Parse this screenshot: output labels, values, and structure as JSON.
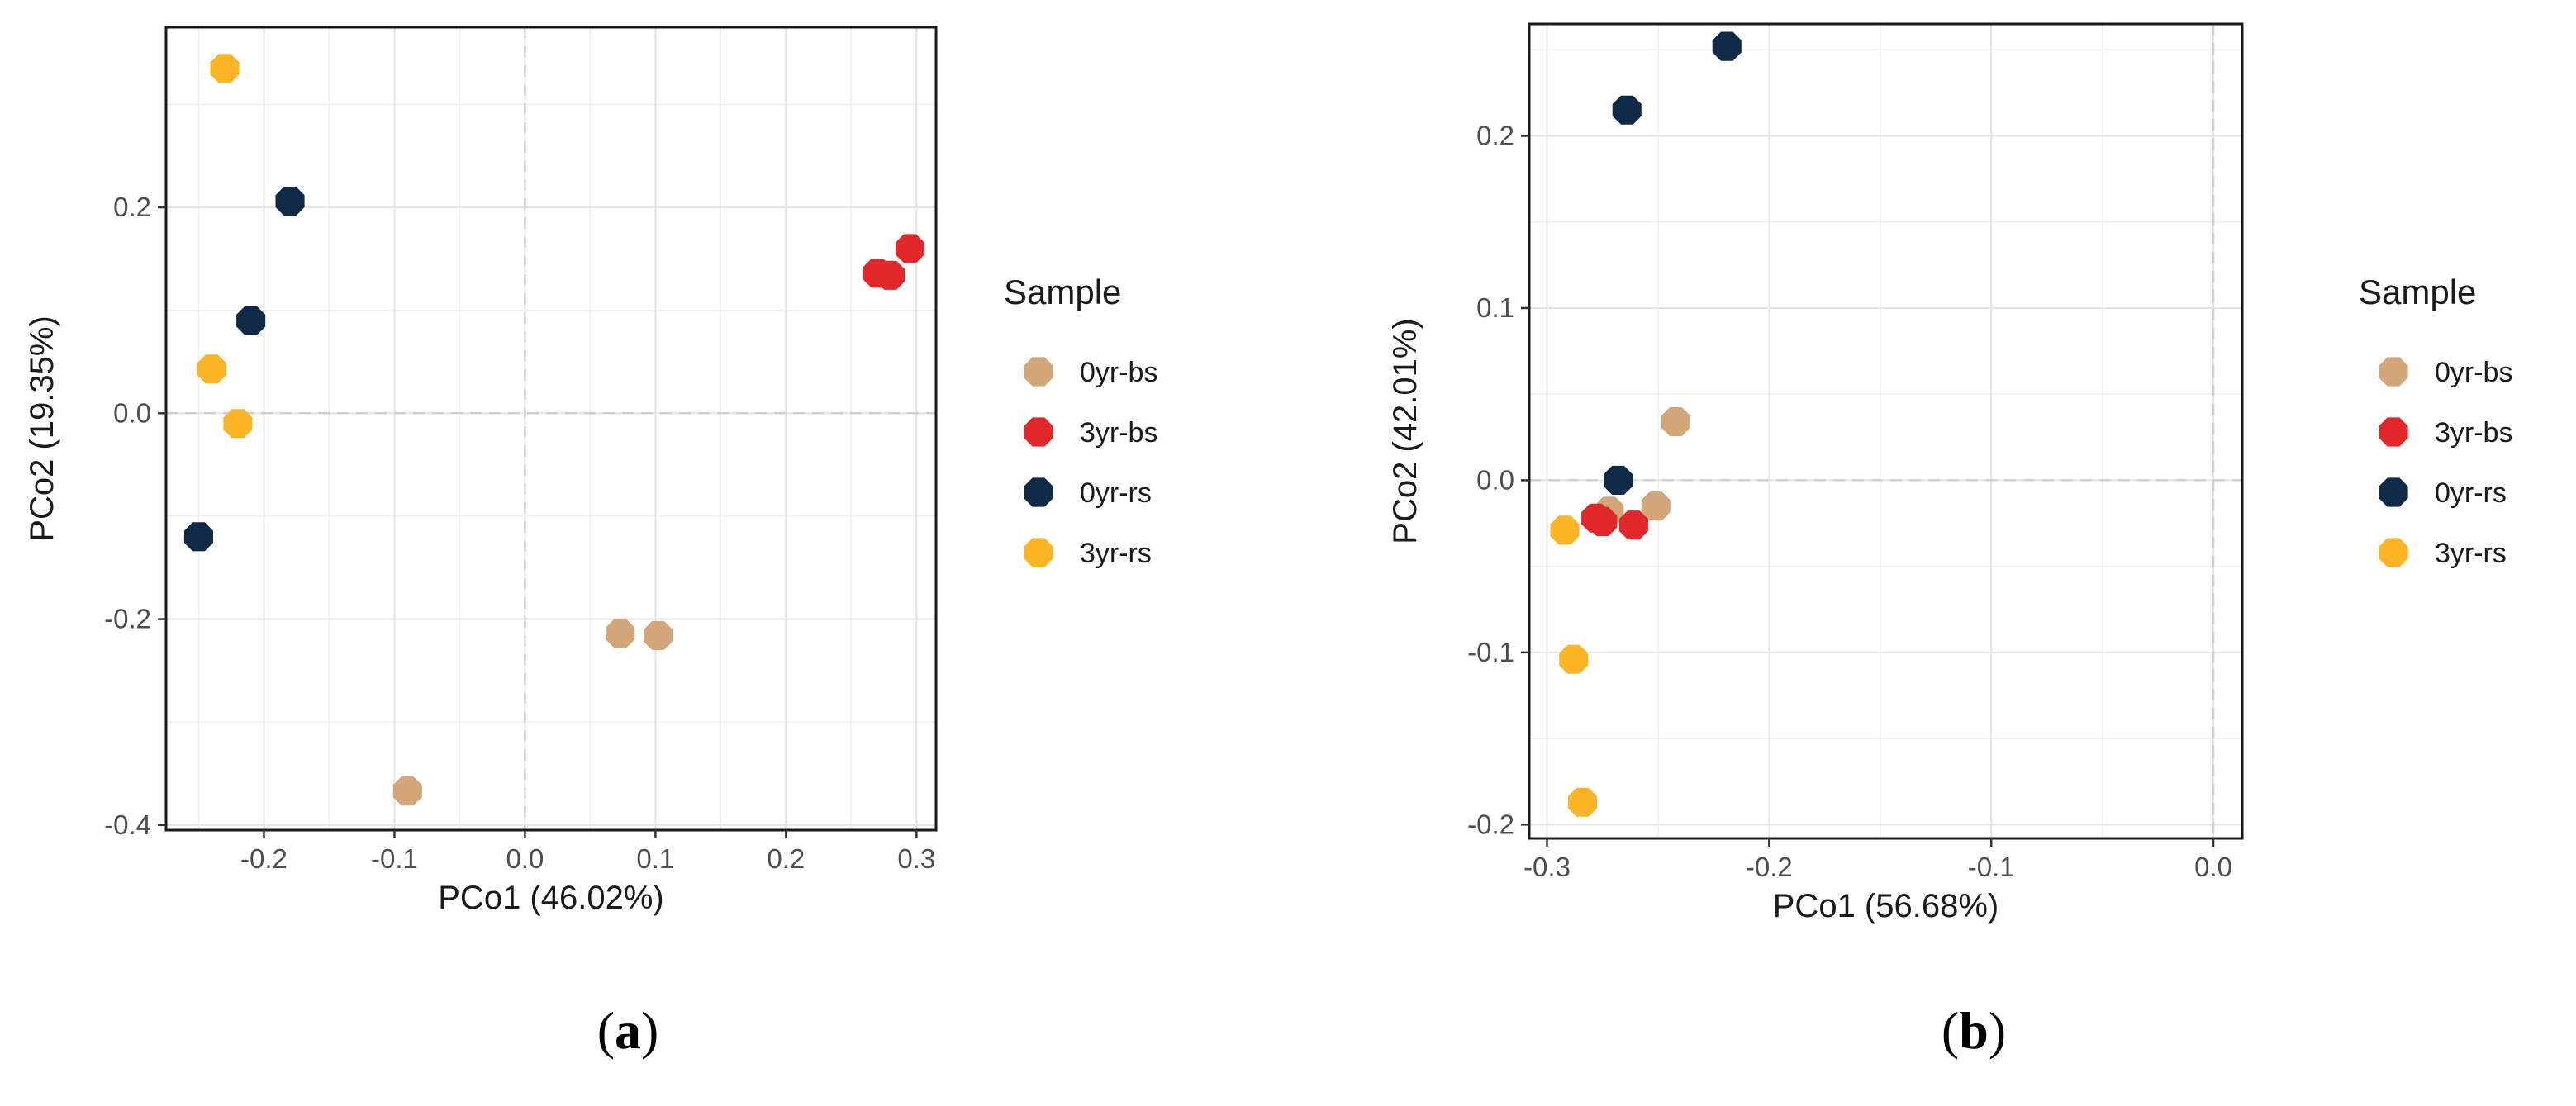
{
  "series_colors": {
    "0yr-bs": "#D2A679",
    "3yr-bs": "#E0282B",
    "0yr-rs": "#0E2A47",
    "3yr-rs": "#FBB524"
  },
  "panels": [
    {
      "caption_open": "(",
      "caption_letter": "a",
      "caption_close": ")",
      "legend_title": "Sample",
      "legend_items": [
        "0yr-bs",
        "3yr-bs",
        "0yr-rs",
        "3yr-rs"
      ],
      "x_tick_labels": [
        "-0.2",
        "-0.1",
        "0.0",
        "0.1",
        "0.2",
        "0.3"
      ],
      "y_tick_labels": [
        "0.2",
        "0.0",
        "-0.2",
        "-0.4"
      ]
    },
    {
      "caption_open": "(",
      "caption_letter": "b",
      "caption_close": ")",
      "legend_title": "Sample",
      "legend_items": [
        "0yr-bs",
        "3yr-bs",
        "0yr-rs",
        "3yr-rs"
      ],
      "x_tick_labels": [
        "-0.3",
        "-0.2",
        "-0.1",
        "0.0"
      ],
      "y_tick_labels": [
        "0.2",
        "0.1",
        "0.0",
        "-0.1",
        "-0.2"
      ]
    }
  ],
  "chart_data": [
    {
      "type": "scatter",
      "xlabel": "PCo1 (46.02%)",
      "ylabel": "PCo2 (19.35%)",
      "xlim": [
        -0.275,
        0.315
      ],
      "ylim": [
        -0.405,
        0.375
      ],
      "x_ticks": [
        -0.2,
        -0.1,
        0.0,
        0.1,
        0.2,
        0.3
      ],
      "y_ticks": [
        0.2,
        0.0,
        -0.2,
        -0.4
      ],
      "grid": true,
      "reference_lines": {
        "x": 0,
        "y": 0
      },
      "legend_position": "right",
      "series": [
        {
          "name": "0yr-bs",
          "points": [
            [
              -0.09,
              -0.367
            ],
            [
              0.073,
              -0.214
            ],
            [
              0.102,
              -0.216
            ]
          ]
        },
        {
          "name": "3yr-bs",
          "points": [
            [
              0.27,
              0.136
            ],
            [
              0.28,
              0.134
            ],
            [
              0.295,
              0.16
            ]
          ]
        },
        {
          "name": "0yr-rs",
          "points": [
            [
              -0.18,
              0.206
            ],
            [
              -0.21,
              0.09
            ],
            [
              -0.25,
              -0.12
            ]
          ]
        },
        {
          "name": "3yr-rs",
          "points": [
            [
              -0.23,
              0.335
            ],
            [
              -0.24,
              0.043
            ],
            [
              -0.22,
              -0.01
            ]
          ]
        }
      ]
    },
    {
      "type": "scatter",
      "xlabel": "PCo1 (56.68%)",
      "ylabel": "PCo2 (42.01%)",
      "xlim": [
        -0.308,
        0.013
      ],
      "ylim": [
        -0.208,
        0.265
      ],
      "x_ticks": [
        -0.3,
        -0.2,
        -0.1,
        0.0
      ],
      "y_ticks": [
        0.2,
        0.1,
        0.0,
        -0.1,
        -0.2
      ],
      "grid": true,
      "reference_lines": {
        "x": 0,
        "y": 0
      },
      "legend_position": "right",
      "series": [
        {
          "name": "0yr-bs",
          "points": [
            [
              -0.242,
              0.034
            ],
            [
              -0.251,
              -0.015
            ],
            [
              -0.272,
              -0.018
            ]
          ]
        },
        {
          "name": "3yr-bs",
          "points": [
            [
              -0.278,
              -0.022
            ],
            [
              -0.275,
              -0.024
            ],
            [
              -0.261,
              -0.026
            ]
          ]
        },
        {
          "name": "0yr-rs",
          "points": [
            [
              -0.219,
              0.252
            ],
            [
              -0.264,
              0.215
            ],
            [
              -0.268,
              0.0
            ]
          ]
        },
        {
          "name": "3yr-rs",
          "points": [
            [
              -0.292,
              -0.029
            ],
            [
              -0.288,
              -0.104
            ],
            [
              -0.284,
              -0.187
            ]
          ]
        }
      ]
    }
  ]
}
